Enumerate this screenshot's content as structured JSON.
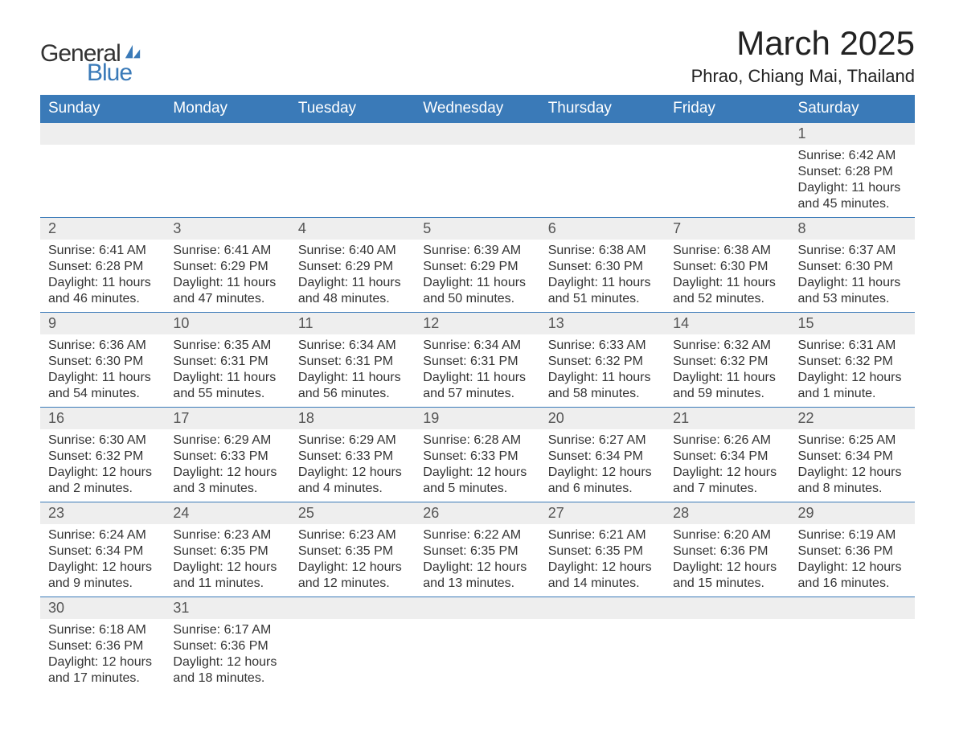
{
  "brand": {
    "name_part1": "General",
    "name_part2": "Blue",
    "accent_color": "#3a7ab8",
    "text_color": "#333333"
  },
  "title": {
    "month_year": "March 2025",
    "location": "Phrao, Chiang Mai, Thailand",
    "title_fontsize": 42,
    "location_fontsize": 22,
    "text_color": "#222222"
  },
  "calendar": {
    "header_bg": "#3a7ab8",
    "header_text_color": "#ffffff",
    "daynum_bg": "#eeeeee",
    "row_border_color": "#3a7ab8",
    "content_text_color": "#333333",
    "body_fontsize": 16,
    "header_fontsize": 19,
    "columns": [
      "Sunday",
      "Monday",
      "Tuesday",
      "Wednesday",
      "Thursday",
      "Friday",
      "Saturday"
    ],
    "weeks": [
      [
        null,
        null,
        null,
        null,
        null,
        null,
        {
          "day": "1",
          "sunrise": "Sunrise: 6:42 AM",
          "sunset": "Sunset: 6:28 PM",
          "daylight": "Daylight: 11 hours and 45 minutes."
        }
      ],
      [
        {
          "day": "2",
          "sunrise": "Sunrise: 6:41 AM",
          "sunset": "Sunset: 6:28 PM",
          "daylight": "Daylight: 11 hours and 46 minutes."
        },
        {
          "day": "3",
          "sunrise": "Sunrise: 6:41 AM",
          "sunset": "Sunset: 6:29 PM",
          "daylight": "Daylight: 11 hours and 47 minutes."
        },
        {
          "day": "4",
          "sunrise": "Sunrise: 6:40 AM",
          "sunset": "Sunset: 6:29 PM",
          "daylight": "Daylight: 11 hours and 48 minutes."
        },
        {
          "day": "5",
          "sunrise": "Sunrise: 6:39 AM",
          "sunset": "Sunset: 6:29 PM",
          "daylight": "Daylight: 11 hours and 50 minutes."
        },
        {
          "day": "6",
          "sunrise": "Sunrise: 6:38 AM",
          "sunset": "Sunset: 6:30 PM",
          "daylight": "Daylight: 11 hours and 51 minutes."
        },
        {
          "day": "7",
          "sunrise": "Sunrise: 6:38 AM",
          "sunset": "Sunset: 6:30 PM",
          "daylight": "Daylight: 11 hours and 52 minutes."
        },
        {
          "day": "8",
          "sunrise": "Sunrise: 6:37 AM",
          "sunset": "Sunset: 6:30 PM",
          "daylight": "Daylight: 11 hours and 53 minutes."
        }
      ],
      [
        {
          "day": "9",
          "sunrise": "Sunrise: 6:36 AM",
          "sunset": "Sunset: 6:30 PM",
          "daylight": "Daylight: 11 hours and 54 minutes."
        },
        {
          "day": "10",
          "sunrise": "Sunrise: 6:35 AM",
          "sunset": "Sunset: 6:31 PM",
          "daylight": "Daylight: 11 hours and 55 minutes."
        },
        {
          "day": "11",
          "sunrise": "Sunrise: 6:34 AM",
          "sunset": "Sunset: 6:31 PM",
          "daylight": "Daylight: 11 hours and 56 minutes."
        },
        {
          "day": "12",
          "sunrise": "Sunrise: 6:34 AM",
          "sunset": "Sunset: 6:31 PM",
          "daylight": "Daylight: 11 hours and 57 minutes."
        },
        {
          "day": "13",
          "sunrise": "Sunrise: 6:33 AM",
          "sunset": "Sunset: 6:32 PM",
          "daylight": "Daylight: 11 hours and 58 minutes."
        },
        {
          "day": "14",
          "sunrise": "Sunrise: 6:32 AM",
          "sunset": "Sunset: 6:32 PM",
          "daylight": "Daylight: 11 hours and 59 minutes."
        },
        {
          "day": "15",
          "sunrise": "Sunrise: 6:31 AM",
          "sunset": "Sunset: 6:32 PM",
          "daylight": "Daylight: 12 hours and 1 minute."
        }
      ],
      [
        {
          "day": "16",
          "sunrise": "Sunrise: 6:30 AM",
          "sunset": "Sunset: 6:32 PM",
          "daylight": "Daylight: 12 hours and 2 minutes."
        },
        {
          "day": "17",
          "sunrise": "Sunrise: 6:29 AM",
          "sunset": "Sunset: 6:33 PM",
          "daylight": "Daylight: 12 hours and 3 minutes."
        },
        {
          "day": "18",
          "sunrise": "Sunrise: 6:29 AM",
          "sunset": "Sunset: 6:33 PM",
          "daylight": "Daylight: 12 hours and 4 minutes."
        },
        {
          "day": "19",
          "sunrise": "Sunrise: 6:28 AM",
          "sunset": "Sunset: 6:33 PM",
          "daylight": "Daylight: 12 hours and 5 minutes."
        },
        {
          "day": "20",
          "sunrise": "Sunrise: 6:27 AM",
          "sunset": "Sunset: 6:34 PM",
          "daylight": "Daylight: 12 hours and 6 minutes."
        },
        {
          "day": "21",
          "sunrise": "Sunrise: 6:26 AM",
          "sunset": "Sunset: 6:34 PM",
          "daylight": "Daylight: 12 hours and 7 minutes."
        },
        {
          "day": "22",
          "sunrise": "Sunrise: 6:25 AM",
          "sunset": "Sunset: 6:34 PM",
          "daylight": "Daylight: 12 hours and 8 minutes."
        }
      ],
      [
        {
          "day": "23",
          "sunrise": "Sunrise: 6:24 AM",
          "sunset": "Sunset: 6:34 PM",
          "daylight": "Daylight: 12 hours and 9 minutes."
        },
        {
          "day": "24",
          "sunrise": "Sunrise: 6:23 AM",
          "sunset": "Sunset: 6:35 PM",
          "daylight": "Daylight: 12 hours and 11 minutes."
        },
        {
          "day": "25",
          "sunrise": "Sunrise: 6:23 AM",
          "sunset": "Sunset: 6:35 PM",
          "daylight": "Daylight: 12 hours and 12 minutes."
        },
        {
          "day": "26",
          "sunrise": "Sunrise: 6:22 AM",
          "sunset": "Sunset: 6:35 PM",
          "daylight": "Daylight: 12 hours and 13 minutes."
        },
        {
          "day": "27",
          "sunrise": "Sunrise: 6:21 AM",
          "sunset": "Sunset: 6:35 PM",
          "daylight": "Daylight: 12 hours and 14 minutes."
        },
        {
          "day": "28",
          "sunrise": "Sunrise: 6:20 AM",
          "sunset": "Sunset: 6:36 PM",
          "daylight": "Daylight: 12 hours and 15 minutes."
        },
        {
          "day": "29",
          "sunrise": "Sunrise: 6:19 AM",
          "sunset": "Sunset: 6:36 PM",
          "daylight": "Daylight: 12 hours and 16 minutes."
        }
      ],
      [
        {
          "day": "30",
          "sunrise": "Sunrise: 6:18 AM",
          "sunset": "Sunset: 6:36 PM",
          "daylight": "Daylight: 12 hours and 17 minutes."
        },
        {
          "day": "31",
          "sunrise": "Sunrise: 6:17 AM",
          "sunset": "Sunset: 6:36 PM",
          "daylight": "Daylight: 12 hours and 18 minutes."
        },
        null,
        null,
        null,
        null,
        null
      ]
    ]
  }
}
